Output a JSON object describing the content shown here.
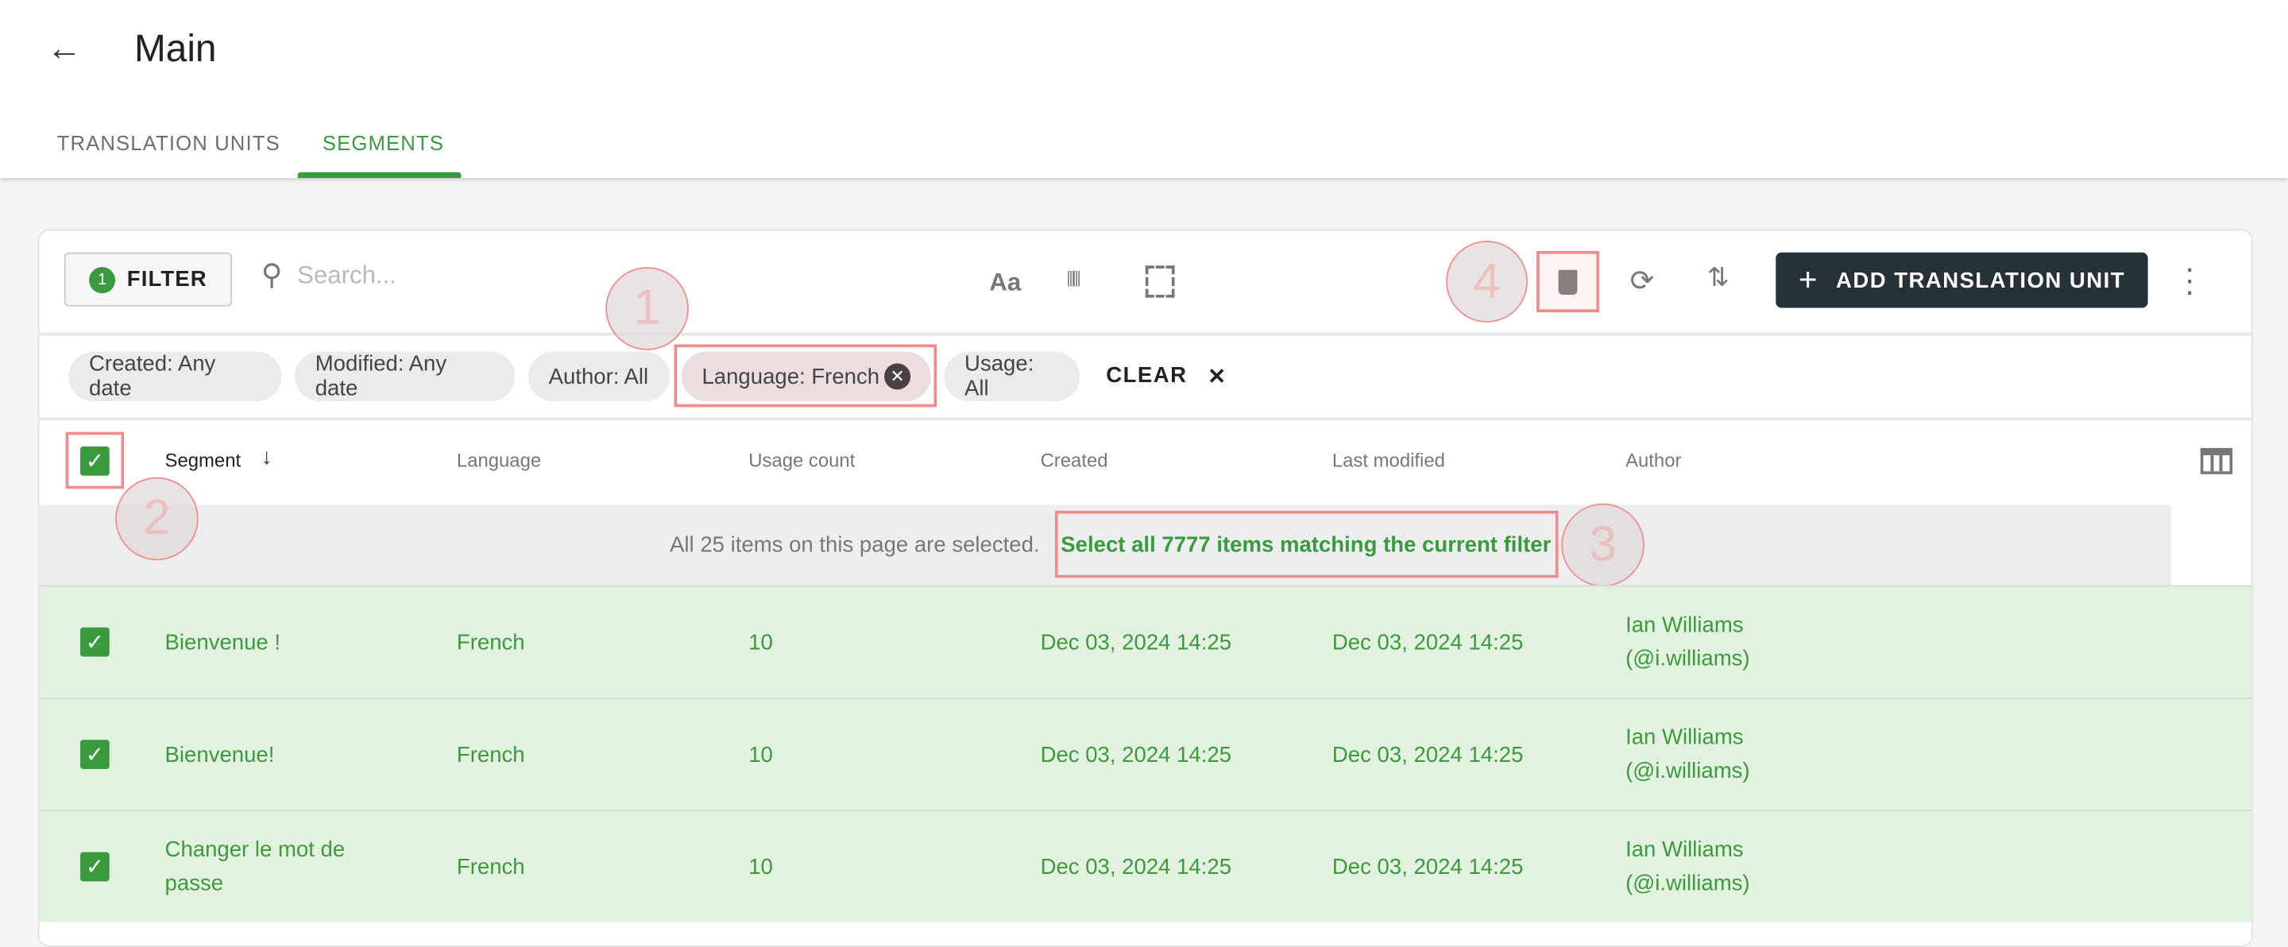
{
  "header": {
    "title": "Main",
    "back_icon": "arrow-left-icon"
  },
  "tabs": [
    {
      "label": "TRANSLATION UNITS",
      "active": false
    },
    {
      "label": "SEGMENTS",
      "active": true
    }
  ],
  "toolbar": {
    "filter_label": "FILTER",
    "filter_count": "1",
    "search_placeholder": "Search...",
    "case_label": "Aa",
    "add_label": "ADD TRANSLATION UNIT"
  },
  "chips": [
    {
      "label": "Created: Any date"
    },
    {
      "label": "Modified: Any date"
    },
    {
      "label": "Author: All"
    },
    {
      "label": "Language: French",
      "removable": true
    },
    {
      "label": "Usage: All"
    }
  ],
  "clear_label": "CLEAR",
  "columns": [
    "Segment",
    "Language",
    "Usage count",
    "Created",
    "Last modified",
    "Author"
  ],
  "banner": {
    "text": "All 25 items on this page are selected.",
    "link": "Select all 7777 items matching the current filter"
  },
  "rows": [
    {
      "segment": "Bienvenue !",
      "language": "French",
      "usage": "10",
      "created": "Dec 03, 2024 14:25",
      "modified": "Dec 03, 2024 14:25",
      "author": "Ian Williams",
      "handle": "(@i.williams)"
    },
    {
      "segment": "Bienvenue!",
      "language": "French",
      "usage": "10",
      "created": "Dec 03, 2024 14:25",
      "modified": "Dec 03, 2024 14:25",
      "author": "Ian Williams",
      "handle": "(@i.williams)"
    },
    {
      "segment": "Changer le mot de passe",
      "language": "French",
      "usage": "10",
      "created": "Dec 03, 2024 14:25",
      "modified": "Dec 03, 2024 14:25",
      "author": "Ian Williams",
      "handle": "(@i.williams)"
    }
  ],
  "annotations": [
    "1",
    "2",
    "3",
    "4"
  ],
  "colors": {
    "accent": "#3a9a3e",
    "primary_button": "#263238",
    "selected_row": "#e3f1e1",
    "annotation": "#f28b8b"
  }
}
